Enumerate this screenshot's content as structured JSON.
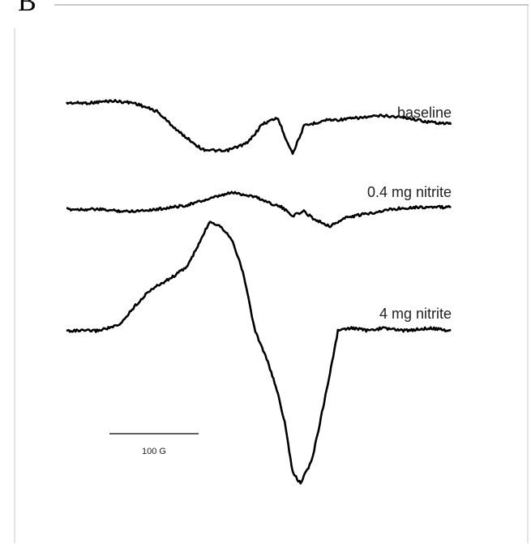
{
  "figure": {
    "panel_letter": "B"
  },
  "chart_data": {
    "type": "line",
    "x_unit": "G",
    "scale_bar": {
      "label": "100 G",
      "length": 100
    },
    "series": [
      {
        "name": "baseline",
        "x": [
          0,
          30,
          60,
          90,
          120,
          150,
          180,
          210,
          240,
          260,
          280,
          290,
          300,
          315,
          325,
          335,
          345,
          360,
          390,
          420,
          450,
          480,
          510
        ],
        "values": [
          3.0,
          3.0,
          3.1,
          3.0,
          2.6,
          1.6,
          0.8,
          0.7,
          1.1,
          2.0,
          2.3,
          1.4,
          0.6,
          1.9,
          2.0,
          2.1,
          2.2,
          2.2,
          2.3,
          2.4,
          2.3,
          2.1,
          2.0
        ],
        "color": "#000000"
      },
      {
        "name": "0.4 mg nitrite",
        "x": [
          0,
          40,
          80,
          120,
          160,
          190,
          220,
          250,
          270,
          285,
          300,
          315,
          330,
          350,
          370,
          400,
          430,
          460,
          480,
          510
        ],
        "values": [
          1.8,
          1.8,
          1.7,
          1.8,
          2.0,
          2.3,
          2.6,
          2.4,
          2.1,
          1.9,
          1.5,
          1.7,
          1.3,
          1.0,
          1.4,
          1.6,
          1.8,
          1.9,
          1.9,
          1.9
        ],
        "color": "#000000"
      },
      {
        "name": "4 mg nitrite",
        "x": [
          0,
          40,
          70,
          90,
          110,
          140,
          160,
          175,
          190,
          205,
          220,
          235,
          250,
          265,
          280,
          290,
          300,
          310,
          325,
          335,
          345,
          355,
          360,
          380,
          400,
          420,
          450,
          480,
          510
        ],
        "values": [
          0.0,
          0.0,
          0.2,
          0.9,
          1.5,
          2.0,
          2.4,
          3.2,
          4.1,
          3.9,
          3.4,
          2.1,
          0.0,
          -1.0,
          -2.3,
          -3.5,
          -5.3,
          -5.7,
          -4.9,
          -3.6,
          -2.2,
          -0.8,
          0.0,
          0.1,
          0.0,
          0.1,
          0.0,
          0.1,
          0.0
        ],
        "color": "#000000"
      }
    ]
  }
}
